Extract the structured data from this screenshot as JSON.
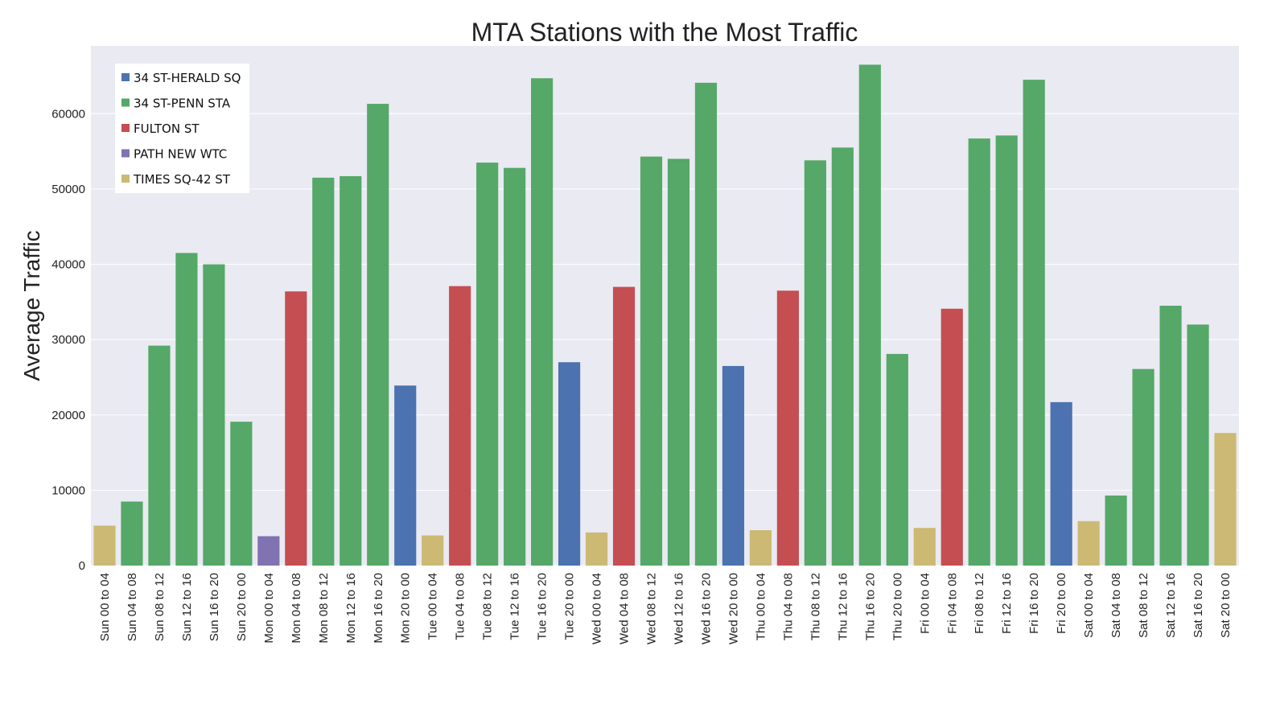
{
  "chart_data": {
    "type": "bar",
    "title": "MTA Stations with the Most Traffic",
    "xlabel": "",
    "ylabel": "Average Traffic",
    "ylim": [
      0,
      69000
    ],
    "yticks": [
      0,
      10000,
      20000,
      30000,
      40000,
      50000,
      60000
    ],
    "grid": true,
    "legend_position": "top-left",
    "colors": {
      "background": "#eaeaf2",
      "grid": "#ffffff"
    },
    "legend": [
      {
        "name": "34 ST-HERALD SQ",
        "color": "#4c72b0"
      },
      {
        "name": "34 ST-PENN STA",
        "color": "#55a868"
      },
      {
        "name": "FULTON ST",
        "color": "#c44e52"
      },
      {
        "name": "PATH NEW WTC",
        "color": "#8172b2"
      },
      {
        "name": "TIMES SQ-42 ST",
        "color": "#ccb974"
      }
    ],
    "categories": [
      "Sun 00 to 04",
      "Sun 04 to 08",
      "Sun 08 to 12",
      "Sun 12 to 16",
      "Sun 16 to 20",
      "Sun 20 to 00",
      "Mon 00 to 04",
      "Mon 04 to 08",
      "Mon 08 to 12",
      "Mon 12 to 16",
      "Mon 16 to 20",
      "Mon 20 to 00",
      "Tue 00 to 04",
      "Tue 04 to 08",
      "Tue 08 to 12",
      "Tue 12 to 16",
      "Tue 16 to 20",
      "Tue 20 to 00",
      "Wed 00 to 04",
      "Wed 04 to 08",
      "Wed 08 to 12",
      "Wed 12 to 16",
      "Wed 16 to 20",
      "Wed 20 to 00",
      "Thu 00 to 04",
      "Thu 04 to 08",
      "Thu 08 to 12",
      "Thu 12 to 16",
      "Thu 16 to 20",
      "Thu 20 to 00",
      "Fri 00 to 04",
      "Fri 04 to 08",
      "Fri 08 to 12",
      "Fri 12 to 16",
      "Fri 16 to 20",
      "Fri 20 to 00",
      "Sat 00 to 04",
      "Sat 04 to 08",
      "Sat 08 to 12",
      "Sat 12 to 16",
      "Sat 16 to 20",
      "Sat 20 to 00"
    ],
    "values": [
      5300,
      8500,
      29200,
      41500,
      40000,
      19100,
      3900,
      36400,
      51500,
      51700,
      61300,
      23900,
      4000,
      37100,
      53500,
      52800,
      64700,
      27000,
      4400,
      37000,
      54300,
      54000,
      64100,
      26500,
      4700,
      36500,
      53800,
      55500,
      66500,
      28100,
      5000,
      34100,
      56700,
      57100,
      64500,
      21700,
      5900,
      9300,
      26100,
      34500,
      32000,
      17600
    ],
    "stations": [
      "TIMES SQ-42 ST",
      "34 ST-PENN STA",
      "34 ST-PENN STA",
      "34 ST-PENN STA",
      "34 ST-PENN STA",
      "34 ST-PENN STA",
      "PATH NEW WTC",
      "FULTON ST",
      "34 ST-PENN STA",
      "34 ST-PENN STA",
      "34 ST-PENN STA",
      "34 ST-HERALD SQ",
      "TIMES SQ-42 ST",
      "FULTON ST",
      "34 ST-PENN STA",
      "34 ST-PENN STA",
      "34 ST-PENN STA",
      "34 ST-HERALD SQ",
      "TIMES SQ-42 ST",
      "FULTON ST",
      "34 ST-PENN STA",
      "34 ST-PENN STA",
      "34 ST-PENN STA",
      "34 ST-HERALD SQ",
      "TIMES SQ-42 ST",
      "FULTON ST",
      "34 ST-PENN STA",
      "34 ST-PENN STA",
      "34 ST-PENN STA",
      "34 ST-PENN STA",
      "TIMES SQ-42 ST",
      "FULTON ST",
      "34 ST-PENN STA",
      "34 ST-PENN STA",
      "34 ST-PENN STA",
      "34 ST-HERALD SQ",
      "TIMES SQ-42 ST",
      "34 ST-PENN STA",
      "34 ST-PENN STA",
      "34 ST-PENN STA",
      "34 ST-PENN STA",
      "TIMES SQ-42 ST"
    ]
  }
}
